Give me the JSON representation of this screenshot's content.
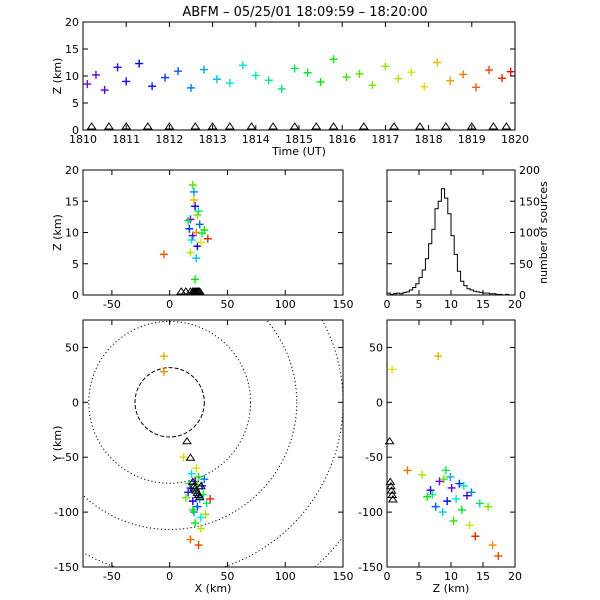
{
  "title": "ABFM – 05/25/01 18:09:59 – 18:20:00",
  "chart_data": [
    {
      "id": "time-height",
      "type": "scatter",
      "xlabel": "Time (UT)",
      "ylabel": "Z (km)",
      "xlim": [
        1810,
        1820
      ],
      "ylim": [
        0,
        20
      ],
      "x_ticks": [
        "1810",
        "1811",
        "1812",
        "1813",
        "1814",
        "1815",
        "1816",
        "1817",
        "1818",
        "1819",
        "1820"
      ],
      "y_ticks": [
        "0",
        "5",
        "10",
        "15",
        "20"
      ],
      "x": [
        1810.1,
        1810.3,
        1810.5,
        1810.8,
        1811.0,
        1811.3,
        1811.6,
        1811.9,
        1812.2,
        1812.5,
        1812.8,
        1813.1,
        1813.4,
        1813.7,
        1814.0,
        1814.3,
        1814.6,
        1814.9,
        1815.2,
        1815.5,
        1815.8,
        1816.1,
        1816.4,
        1816.7,
        1817.0,
        1817.3,
        1817.6,
        1817.9,
        1818.2,
        1818.5,
        1818.8,
        1819.1,
        1819.4,
        1819.7,
        1819.9
      ],
      "y": [
        8.5,
        10.2,
        7.4,
        11.6,
        9.0,
        12.3,
        8.1,
        9.7,
        10.9,
        7.8,
        11.2,
        9.4,
        8.7,
        12.0,
        10.1,
        9.2,
        7.6,
        11.4,
        10.6,
        8.9,
        13.1,
        9.8,
        10.4,
        8.3,
        11.8,
        9.5,
        10.7,
        8.0,
        12.5,
        9.1,
        10.3,
        7.9,
        11.1,
        9.6,
        10.8
      ],
      "station_x": [
        1810.2,
        1810.6,
        1811.0,
        1811.5,
        1812.0,
        1812.6,
        1813.0,
        1813.4,
        1813.9,
        1814.4,
        1814.9,
        1815.4,
        1815.8,
        1816.5,
        1817.2,
        1817.8,
        1818.4,
        1819.0,
        1819.5,
        1819.8
      ]
    },
    {
      "id": "x-height",
      "type": "scatter",
      "xlabel": "",
      "ylabel": "Z (km)",
      "xlim": [
        -75,
        150
      ],
      "ylim": [
        0,
        20
      ],
      "x_ticks": [
        "-50",
        "0",
        "50",
        "100",
        "150"
      ],
      "y_ticks": [
        "0",
        "5",
        "10",
        "15",
        "20"
      ],
      "x": [
        18,
        20,
        22,
        24,
        17,
        26,
        21,
        23,
        19,
        25,
        28,
        16,
        22,
        30,
        20,
        24,
        18,
        27,
        21,
        23,
        -5,
        33
      ],
      "y": [
        12.1,
        9.5,
        14.2,
        7.8,
        10.6,
        11.3,
        16.5,
        5.9,
        8.8,
        13.4,
        9.9,
        11.9,
        2.5,
        10.4,
        17.6,
        12.8,
        6.8,
        8.4,
        15.2,
        10.0,
        6.5,
        9.0
      ],
      "station_x": [
        10,
        14,
        18,
        20,
        21,
        22,
        23,
        24,
        25,
        26
      ]
    },
    {
      "id": "height-histogram",
      "type": "bar",
      "xlabel": "",
      "ylabel": "number of sources",
      "xlim": [
        0,
        20
      ],
      "ylim": [
        0,
        200
      ],
      "x_ticks": [
        "0",
        "5",
        "10",
        "15",
        "20"
      ],
      "y_ticks": [
        "0",
        "50",
        "100",
        "150",
        "200"
      ],
      "bin_edges": [
        0,
        0.5,
        1,
        1.5,
        2,
        2.5,
        3,
        3.5,
        4,
        4.5,
        5,
        5.5,
        6,
        6.5,
        7,
        7.5,
        8,
        8.5,
        9,
        9.5,
        10,
        10.5,
        11,
        11.5,
        12,
        12.5,
        13,
        13.5,
        14,
        14.5,
        15,
        15.5,
        16,
        16.5,
        17,
        17.5,
        18,
        18.5,
        19,
        19.5,
        20
      ],
      "values": [
        3,
        1,
        2,
        3,
        2,
        4,
        5,
        8,
        12,
        18,
        28,
        40,
        58,
        82,
        105,
        138,
        150,
        170,
        155,
        130,
        95,
        65,
        38,
        22,
        15,
        10,
        8,
        6,
        5,
        4,
        3,
        3,
        2,
        2,
        1,
        1,
        0,
        1,
        0,
        0
      ]
    },
    {
      "id": "plan-view",
      "type": "scatter",
      "xlabel": "X (km)",
      "ylabel": "Y (km)",
      "xlim": [
        -75,
        150
      ],
      "ylim": [
        -150,
        75
      ],
      "x_ticks": [
        "-50",
        "0",
        "50",
        "100",
        "150"
      ],
      "y_ticks": [
        "-150",
        "-100",
        "-50",
        "0",
        "50"
      ],
      "ring_radii_km": [
        30,
        70,
        110,
        150,
        190
      ],
      "x": [
        18,
        22,
        25,
        20,
        28,
        16,
        24,
        30,
        21,
        26,
        19,
        27,
        23,
        32,
        17,
        29,
        22,
        25,
        20,
        24,
        14,
        31,
        27,
        23,
        12,
        -5,
        -5,
        18,
        25,
        35
      ],
      "y": [
        -78,
        -72,
        -85,
        -90,
        -76,
        -82,
        -95,
        -70,
        -100,
        -88,
        -65,
        -105,
        -80,
        -92,
        -74,
        -84,
        -110,
        -68,
        -98,
        -75,
        -87,
        -102,
        -115,
        -60,
        -50,
        42,
        28,
        -125,
        -130,
        -88
      ],
      "station_x": [
        15,
        18,
        20,
        21,
        22,
        23,
        24,
        25,
        26,
        27
      ],
      "station_y": [
        -35,
        -50,
        -72,
        -76,
        -78,
        -80,
        -82,
        -84,
        -86,
        -76
      ]
    },
    {
      "id": "height-y",
      "type": "scatter",
      "xlabel": "Z (km)",
      "ylabel": "",
      "xlim": [
        0,
        20
      ],
      "ylim": [
        -150,
        75
      ],
      "x_ticks": [
        "0",
        "5",
        "10",
        "15",
        "20"
      ],
      "y_ticks": [
        "-150",
        "-100",
        "-50",
        "0",
        "50"
      ],
      "x": [
        8.2,
        10.1,
        12.5,
        6.8,
        9.4,
        11.3,
        7.6,
        13.2,
        9.9,
        8.7,
        10.8,
        12.0,
        7.1,
        14.5,
        9.2,
        11.7,
        6.3,
        10.4,
        8.9,
        15.8,
        5.5,
        12.9,
        0.8,
        8.0,
        16.5,
        3.2,
        17.4,
        13.8
      ],
      "y": [
        -72,
        -78,
        -85,
        -80,
        -90,
        -74,
        -95,
        -82,
        -68,
        -100,
        -88,
        -76,
        -84,
        -92,
        -62,
        -98,
        -86,
        -108,
        -70,
        -95,
        -66,
        -112,
        30,
        42,
        -130,
        -62,
        -140,
        -122
      ],
      "station_x": [
        0.1,
        0.2,
        0.3,
        0.4,
        0.5,
        0.6
      ],
      "station_y": [
        -35,
        -72,
        -76,
        -80,
        -84,
        -88
      ]
    }
  ]
}
